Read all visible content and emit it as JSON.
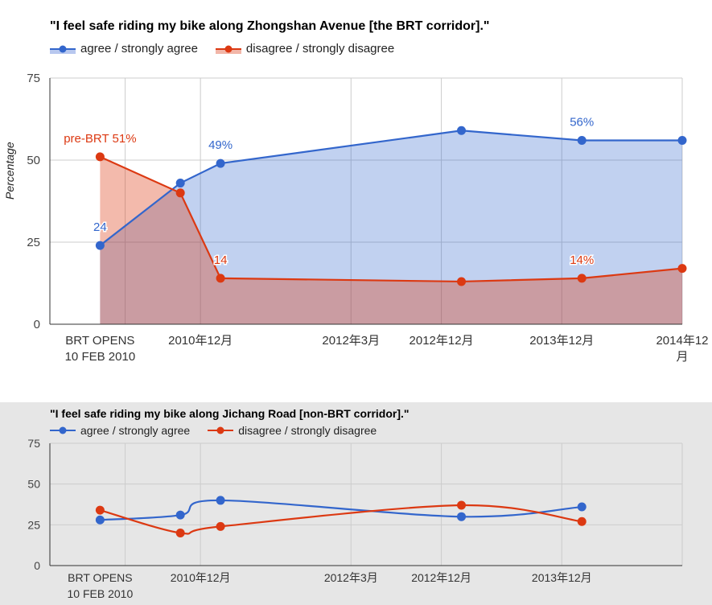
{
  "chart_data": [
    {
      "type": "area",
      "title": "\"I feel safe riding my bike along Zhongshan Avenue [the BRT corridor].\"",
      "ylabel": "Percentage",
      "xlabel": "",
      "ylim": [
        0,
        75
      ],
      "yticks": [
        "0",
        "25",
        "50",
        "75"
      ],
      "x_tick_labels": [
        {
          "at": 0,
          "lines": [
            "BRT OPENS",
            "10 FEB 2010"
          ]
        },
        {
          "at": 10,
          "lines": [
            "2010年12月"
          ]
        },
        {
          "at": 25,
          "lines": [
            "2012年3月"
          ]
        },
        {
          "at": 34,
          "lines": [
            "2012年12月"
          ]
        },
        {
          "at": 46,
          "lines": [
            "2013年12月"
          ]
        },
        {
          "at": 58,
          "lines": [
            "2014年12",
            "月"
          ]
        }
      ],
      "x_gridlines": [
        2.5,
        10,
        25,
        34,
        46,
        58
      ],
      "xlim": [
        -5,
        58
      ],
      "series": [
        {
          "name": "agree / strongly agree",
          "color": "#3366cc",
          "fill": "#b8c8ef",
          "x": [
            0,
            8,
            12,
            36,
            48,
            60
          ],
          "values": [
            24,
            43,
            49,
            59,
            56,
            56
          ],
          "data_labels": {
            "0": "24",
            "2": "49%",
            "4": "56%"
          }
        },
        {
          "name": "disagree / strongly disagree",
          "color": "#dc3912",
          "fill": "#f2b6a8",
          "x": [
            0,
            8,
            12,
            36,
            48,
            60
          ],
          "values": [
            51,
            40,
            14,
            13,
            14,
            17
          ],
          "data_labels": {
            "0": "pre-BRT 51%",
            "2": "14",
            "4": "14%"
          }
        }
      ],
      "legend": "top-left"
    },
    {
      "type": "line",
      "title": "\"I feel safe riding my bike along Jichang Road [non-BRT corridor].\"",
      "ylim": [
        0,
        75
      ],
      "yticks": [
        "0",
        "25",
        "50",
        "75"
      ],
      "x_tick_labels": [
        {
          "at": 0,
          "lines": [
            "BRT OPENS",
            "10 FEB 2010"
          ]
        },
        {
          "at": 10,
          "lines": [
            "2010年12月"
          ]
        },
        {
          "at": 25,
          "lines": [
            "2012年3月"
          ]
        },
        {
          "at": 34,
          "lines": [
            "2012年12月"
          ]
        },
        {
          "at": 46,
          "lines": [
            "2013年12月"
          ]
        }
      ],
      "x_gridlines": [
        2.5,
        10,
        25,
        34,
        46,
        58
      ],
      "xlim": [
        -5,
        58
      ],
      "series": [
        {
          "name": "agree / strongly agree",
          "color": "#3366cc",
          "x": [
            0,
            8,
            12,
            36,
            48
          ],
          "values": [
            28,
            31,
            40,
            30,
            36
          ]
        },
        {
          "name": "disagree / strongly disagree",
          "color": "#dc3912",
          "x": [
            0,
            8,
            12,
            36,
            48
          ],
          "values": [
            34,
            20,
            24,
            37,
            27
          ]
        }
      ],
      "legend": "top-left"
    }
  ]
}
